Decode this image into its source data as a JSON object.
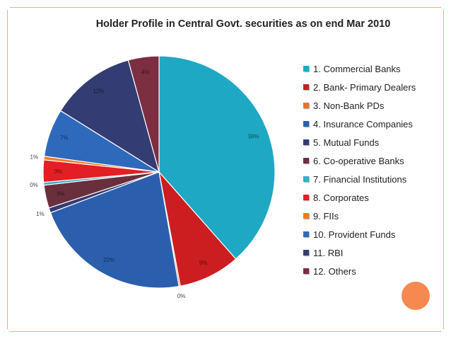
{
  "chart_data": {
    "type": "pie",
    "title": "Holder Profile in Central Govt. securities as on  end Mar 2010",
    "legend_position": "right",
    "slices": [
      {
        "label": "1. Commercial Banks",
        "value": 38.6,
        "data_label": "38%",
        "color": "#1fa8c4"
      },
      {
        "label": "2. Bank- Primary Dealers",
        "value": 8.6,
        "data_label": "9%",
        "color": "#cc1d20"
      },
      {
        "label": "3. Non-Bank PDs",
        "value": 0.2,
        "data_label": "0%",
        "color": "#e8742a"
      },
      {
        "label": "4. Insurance Companies",
        "value": 22.1,
        "data_label": "22%",
        "color": "#2b5fad"
      },
      {
        "label": "5. Mutual Funds",
        "value": 0.7,
        "data_label": "1%",
        "color": "#343b72"
      },
      {
        "label": "6. Co-operative Banks",
        "value": 3.2,
        "data_label": "3%",
        "color": "#6a2f3d"
      },
      {
        "label": "7. Financial Institutions",
        "value": 0.4,
        "data_label": "0%",
        "color": "#3aaec7"
      },
      {
        "label": "8. Corporates",
        "value": 3.1,
        "data_label": "3%",
        "color": "#e31e24"
      },
      {
        "label": "9. FIIs",
        "value": 0.5,
        "data_label": "1%",
        "color": "#f07a22"
      },
      {
        "label": "10. Provident Funds",
        "value": 6.7,
        "data_label": "7%",
        "color": "#2f69bc"
      },
      {
        "label": "11. RBI",
        "value": 11.9,
        "data_label": "12%",
        "color": "#333c73"
      },
      {
        "label": "12. Others",
        "value": 4.3,
        "data_label": "4%",
        "color": "#7b2f40"
      }
    ]
  }
}
